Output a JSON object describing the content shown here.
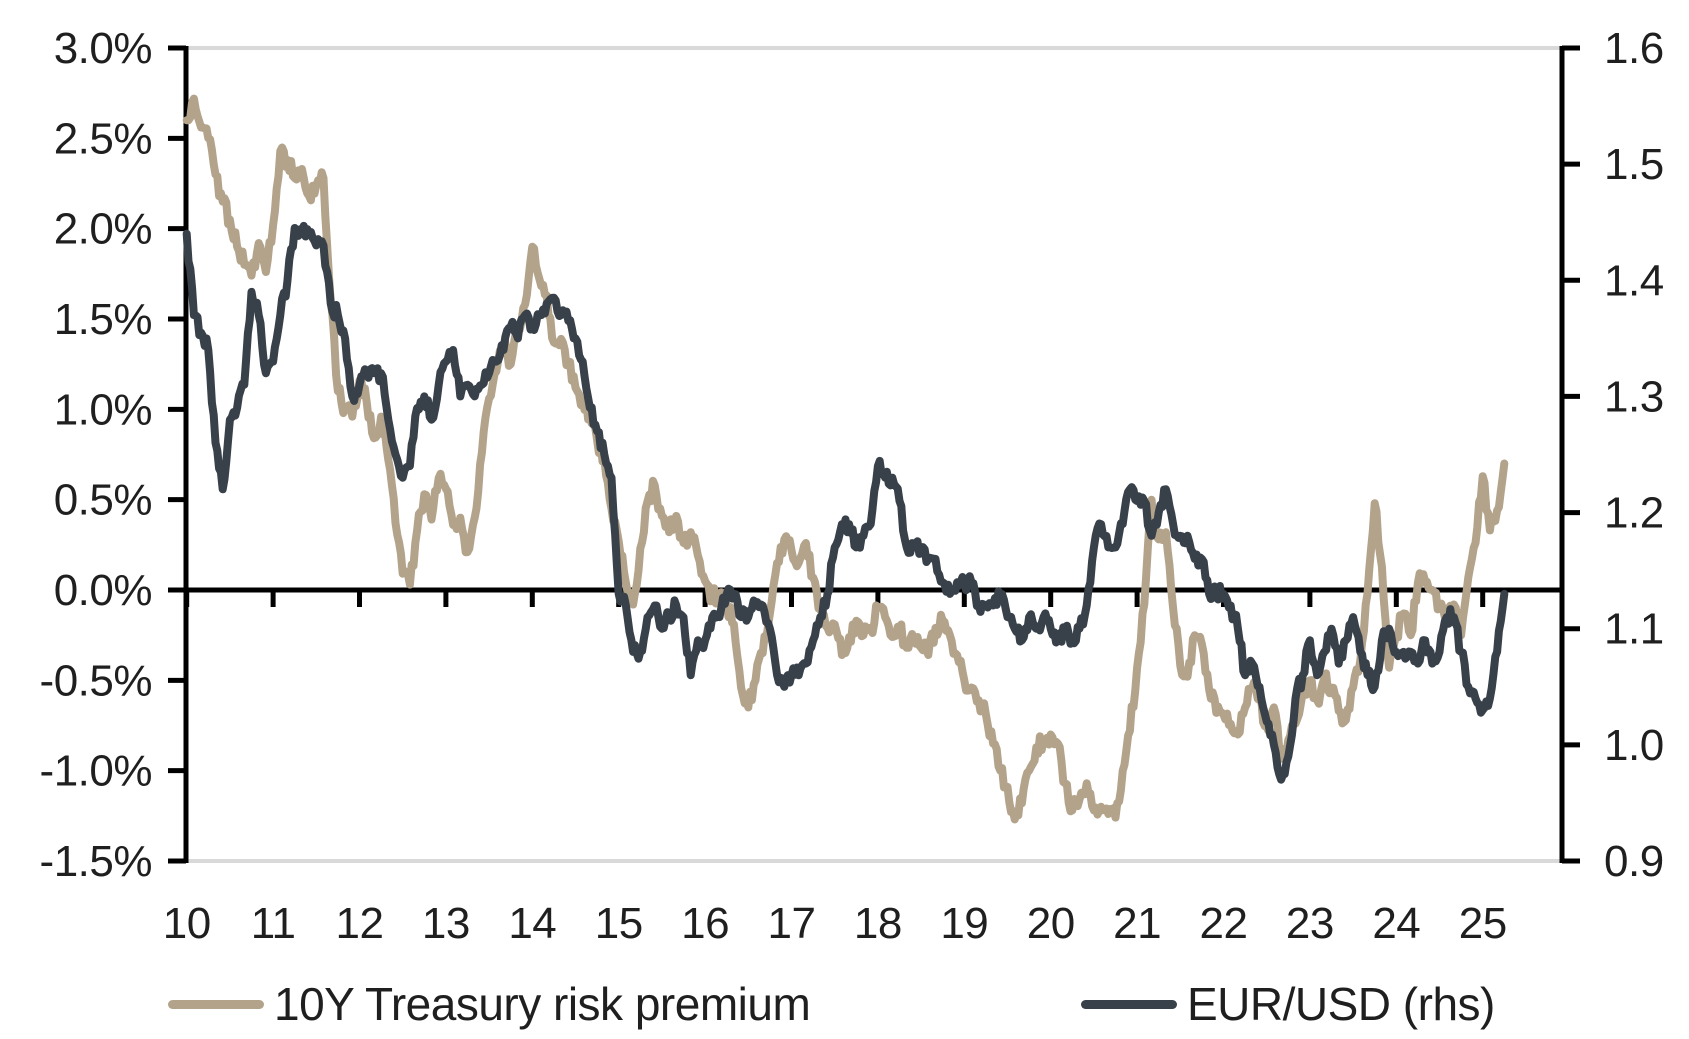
{
  "styles": {
    "background": "#ffffff",
    "axis_color": "#000000",
    "border_color": "#d9d9d9",
    "text_color": "#1f1f1f",
    "series_tan": "#b4a38b",
    "series_dark": "#38414a"
  },
  "chart_data": {
    "type": "line",
    "title": "",
    "xlabel": "",
    "ylabel_left": "",
    "ylabel_right": "",
    "grid": "none (horizontal zero line only, gray top and bottom borders)",
    "legend_position": "bottom",
    "x_start_year": 2010,
    "x_months_per_point": 1,
    "x_tick_labels": [
      "10",
      "11",
      "12",
      "13",
      "14",
      "15",
      "16",
      "17",
      "18",
      "19",
      "20",
      "21",
      "22",
      "23",
      "24",
      "25"
    ],
    "left_axis": {
      "min": -1.5,
      "max": 3.0,
      "unit": "%",
      "tick_labels": [
        "3.0%",
        "2.5%",
        "2.0%",
        "1.5%",
        "1.0%",
        "0.5%",
        "0.0%",
        "-0.5%",
        "-1.0%",
        "-1.5%"
      ]
    },
    "right_axis": {
      "min": 0.9,
      "max": 1.6,
      "tick_labels": [
        "1.6",
        "1.5",
        "1.4",
        "1.3",
        "1.2",
        "1.1",
        "1.0",
        "0.9"
      ]
    },
    "series": [
      {
        "name": "10Y Treasury risk premium",
        "axis": "left",
        "color": "#b4a38b",
        "frequency": "monthly (Jan 2010 - Apr 2025)",
        "values": [
          2.6,
          2.72,
          2.56,
          2.5,
          2.3,
          2.15,
          2.05,
          1.9,
          1.8,
          1.74,
          1.92,
          1.76,
          2.02,
          2.43,
          2.38,
          2.28,
          2.33,
          2.18,
          2.24,
          2.28,
          1.6,
          1.1,
          1.0,
          0.96,
          1.16,
          1.04,
          0.84,
          0.96,
          0.72,
          0.37,
          0.09,
          0.03,
          0.33,
          0.53,
          0.39,
          0.62,
          0.56,
          0.36,
          0.4,
          0.21,
          0.4,
          0.76,
          1.06,
          1.21,
          1.35,
          1.25,
          1.43,
          1.58,
          1.9,
          1.72,
          1.63,
          1.37,
          1.39,
          1.25,
          1.12,
          1.05,
          0.96,
          0.83,
          0.73,
          0.45,
          0.27,
          0.04,
          -0.08,
          0.23,
          0.49,
          0.58,
          0.41,
          0.32,
          0.41,
          0.26,
          0.32,
          0.19,
          0.05,
          -0.04,
          -0.02,
          -0.09,
          -0.19,
          -0.54,
          -0.65,
          -0.5,
          -0.35,
          -0.13,
          0.15,
          0.28,
          0.22,
          0.15,
          0.26,
          0.07,
          -0.1,
          -0.21,
          -0.19,
          -0.36,
          -0.26,
          -0.17,
          -0.25,
          -0.22,
          -0.1,
          -0.15,
          -0.26,
          -0.21,
          -0.32,
          -0.28,
          -0.32,
          -0.36,
          -0.21,
          -0.17,
          -0.25,
          -0.36,
          -0.5,
          -0.54,
          -0.61,
          -0.69,
          -0.85,
          -1.0,
          -1.09,
          -1.27,
          -1.18,
          -1.0,
          -0.87,
          -0.83,
          -0.8,
          -0.85,
          -1.07,
          -1.22,
          -1.16,
          -1.07,
          -1.22,
          -1.2,
          -1.24,
          -1.26,
          -1.0,
          -0.78,
          -0.43,
          -0.08,
          0.5,
          0.28,
          0.32,
          -0.1,
          -0.42,
          -0.48,
          -0.25,
          -0.3,
          -0.55,
          -0.68,
          -0.69,
          -0.74,
          -0.8,
          -0.65,
          -0.54,
          -0.61,
          -0.76,
          -0.65,
          -0.92,
          -0.83,
          -0.74,
          -0.57,
          -0.5,
          -0.61,
          -0.49,
          -0.54,
          -0.67,
          -0.72,
          -0.54,
          -0.39,
          -0.02,
          0.48,
          0.13,
          -0.43,
          -0.25,
          -0.13,
          -0.25,
          0.04,
          0.05,
          0.0,
          -0.08,
          -0.15,
          -0.08,
          -0.25,
          0.07,
          0.26,
          0.63,
          0.33,
          0.44,
          0.7
        ]
      },
      {
        "name": "EUR/USD (rhs)",
        "axis": "right",
        "color": "#38414a",
        "frequency": "monthly (Jan 2010 - Apr 2025)",
        "values": [
          1.44,
          1.37,
          1.355,
          1.34,
          1.26,
          1.22,
          1.28,
          1.29,
          1.31,
          1.39,
          1.37,
          1.32,
          1.33,
          1.37,
          1.4,
          1.445,
          1.44,
          1.44,
          1.43,
          1.43,
          1.38,
          1.37,
          1.35,
          1.3,
          1.31,
          1.32,
          1.32,
          1.32,
          1.28,
          1.25,
          1.23,
          1.24,
          1.29,
          1.3,
          1.28,
          1.31,
          1.33,
          1.34,
          1.3,
          1.31,
          1.3,
          1.31,
          1.32,
          1.33,
          1.34,
          1.36,
          1.35,
          1.37,
          1.36,
          1.37,
          1.38,
          1.385,
          1.37,
          1.365,
          1.35,
          1.33,
          1.29,
          1.27,
          1.25,
          1.23,
          1.13,
          1.12,
          1.08,
          1.08,
          1.11,
          1.12,
          1.1,
          1.11,
          1.12,
          1.11,
          1.06,
          1.09,
          1.09,
          1.11,
          1.11,
          1.13,
          1.13,
          1.11,
          1.11,
          1.12,
          1.12,
          1.1,
          1.06,
          1.05,
          1.06,
          1.06,
          1.07,
          1.09,
          1.11,
          1.13,
          1.17,
          1.19,
          1.19,
          1.17,
          1.18,
          1.19,
          1.24,
          1.23,
          1.23,
          1.21,
          1.17,
          1.17,
          1.17,
          1.16,
          1.16,
          1.14,
          1.13,
          1.14,
          1.14,
          1.14,
          1.12,
          1.12,
          1.12,
          1.13,
          1.11,
          1.1,
          1.09,
          1.11,
          1.1,
          1.11,
          1.1,
          1.09,
          1.1,
          1.09,
          1.1,
          1.12,
          1.17,
          1.19,
          1.17,
          1.17,
          1.19,
          1.22,
          1.21,
          1.21,
          1.18,
          1.2,
          1.22,
          1.19,
          1.18,
          1.18,
          1.16,
          1.16,
          1.13,
          1.13,
          1.13,
          1.12,
          1.1,
          1.06,
          1.07,
          1.05,
          1.02,
          1.0,
          0.97,
          0.99,
          1.04,
          1.06,
          1.09,
          1.06,
          1.08,
          1.1,
          1.07,
          1.09,
          1.11,
          1.08,
          1.06,
          1.05,
          1.09,
          1.1,
          1.08,
          1.08,
          1.08,
          1.07,
          1.09,
          1.07,
          1.08,
          1.11,
          1.11,
          1.08,
          1.05,
          1.04,
          1.03,
          1.04,
          1.08,
          1.13
        ]
      }
    ]
  }
}
